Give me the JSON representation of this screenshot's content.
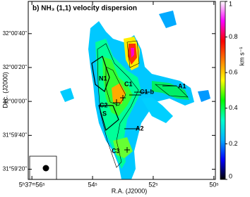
{
  "chart_data": {
    "type": "image",
    "title": "b) NH₃ (1,1) velocity dispersion",
    "x_label": "R.A. (J2000)",
    "y_label": "Dec. (J2000)",
    "xlim": [
      56.12,
      49.95
    ],
    "xticks": [
      {
        "value": 56,
        "label": "5ʰ37ᵐ56ˢ"
      },
      {
        "value": 54,
        "label": "54ˢ"
      },
      {
        "value": 52,
        "label": "52ˢ"
      },
      {
        "value": 50,
        "label": "50ˢ"
      }
    ],
    "ylim": [
      31.98722,
      32.01639
    ],
    "yticks": [
      {
        "value": 32.01111,
        "label": "32°00'40\""
      },
      {
        "value": 32.00556,
        "label": "32°00'20\""
      },
      {
        "value": 32.0,
        "label": "32°00'00\""
      },
      {
        "value": 31.99444,
        "label": "31°59'40\""
      },
      {
        "value": 31.98889,
        "label": "31°59'20\""
      }
    ],
    "colorbar": {
      "label": "km s⁻¹",
      "ylim": [
        0,
        1
      ],
      "yticks": [
        0,
        0.2,
        0.4,
        0.6,
        0.8,
        1
      ],
      "colors": [
        "#000000",
        "#0000ff",
        "#00b0ff",
        "#00ffcc",
        "#00ff00",
        "#ffff00",
        "#ff8000",
        "#ff0000",
        "#ff00ff",
        "#ffffff"
      ]
    },
    "annotations": [
      {
        "text": "N1"
      },
      {
        "text": "C1"
      },
      {
        "text": "C1-b"
      },
      {
        "text": "A1"
      },
      {
        "text": "C2"
      },
      {
        "text": "S"
      },
      {
        "text": "A2"
      },
      {
        "text": "C3"
      }
    ]
  }
}
